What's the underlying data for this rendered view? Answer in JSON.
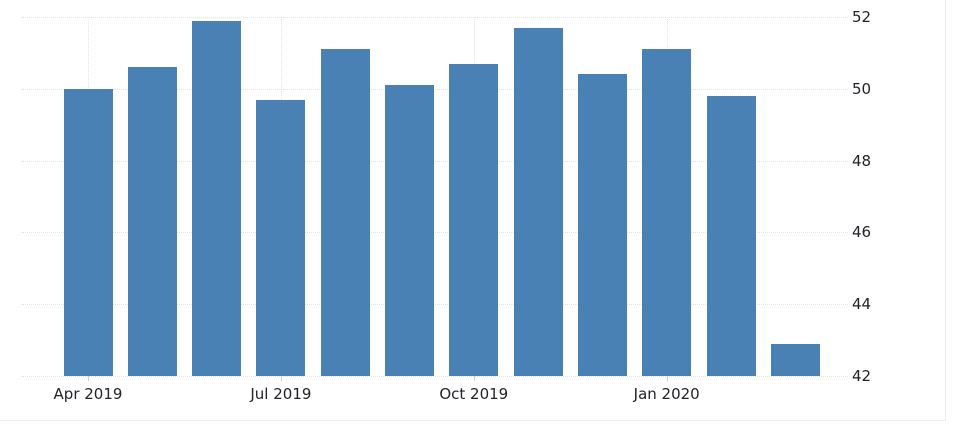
{
  "chart_data": {
    "type": "bar",
    "title": "",
    "categories": [
      "Apr 2019",
      "May 2019",
      "Jun 2019",
      "Jul 2019",
      "Aug 2019",
      "Sep 2019",
      "Oct 2019",
      "Nov 2019",
      "Dec 2019",
      "Jan 2020",
      "Feb 2020",
      "Mar 2020"
    ],
    "values": [
      50.0,
      50.6,
      51.9,
      49.7,
      51.1,
      50.1,
      50.7,
      51.7,
      50.4,
      51.1,
      49.8,
      42.9
    ],
    "xlabel": "",
    "ylabel": "",
    "x_tick_labels": [
      "Apr 2019",
      "Jul 2019",
      "Oct 2019",
      "Jan 2020"
    ],
    "x_tick_month_indexes": [
      0,
      3,
      6,
      9
    ],
    "y_ticks": [
      52,
      50,
      48,
      46,
      44,
      42
    ],
    "ylim": [
      42,
      52
    ],
    "y_axis_side": "right",
    "grid": "dotted",
    "legend": "none",
    "bar_color": "#4a81b4",
    "grid_color": "#e2e2e2",
    "tick_label_color": "#222228",
    "widget_border_color": "#ececec",
    "background_color": "#ffffff"
  }
}
